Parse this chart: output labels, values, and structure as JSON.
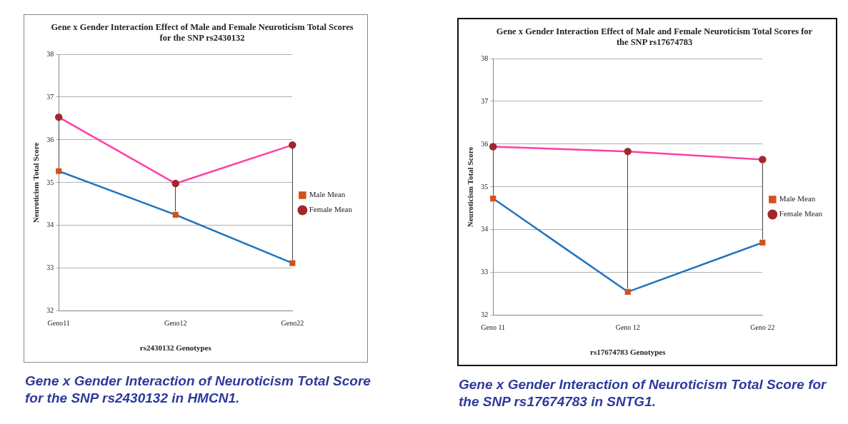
{
  "chart_data": [
    {
      "type": "line",
      "title": "Gene x Gender Interaction Effect of Male and Female Neuroticism Total Scores for the SNP rs2430132",
      "xlabel": "rs2430132 Genotypes",
      "ylabel": "Neuroticism Total Score",
      "categories": [
        "Geno11",
        "Geno12",
        "Geno22"
      ],
      "series": [
        {
          "name": "Male Mean",
          "color": "#1f74bf",
          "marker": "square",
          "values": [
            35.27,
            34.25,
            33.12
          ]
        },
        {
          "name": "Female Mean",
          "color": "#ff3fa4",
          "marker": "circle",
          "values": [
            36.53,
            34.98,
            35.88
          ]
        }
      ],
      "ylim": [
        32,
        38
      ],
      "yticks": [
        32,
        33,
        34,
        35,
        36,
        37,
        38
      ],
      "grid": "y",
      "legend": "right",
      "line_style": "solid",
      "annotations": [
        "Gene x Gender Interaction of Neuroticism Total Score for the SNP rs2430132 in HMCN1."
      ]
    },
    {
      "type": "line",
      "title": "Gene x Gender Interaction  Effect of Male and Female Neuroticism Total Scores for the SNP rs17674783",
      "xlabel": "rs17674783 Genotypes",
      "ylabel": "Neuroticism Total Score",
      "categories": [
        "Geno 11",
        "Geno 12",
        "Geno 22"
      ],
      "series": [
        {
          "name": "Male Mean",
          "color": "#1f74bf",
          "marker": "square",
          "values": [
            34.73,
            32.55,
            33.7
          ]
        },
        {
          "name": "Female Mean",
          "color": "#ff3fa4",
          "marker": "circle",
          "values": [
            35.94,
            35.83,
            35.64
          ]
        }
      ],
      "ylim": [
        32,
        38
      ],
      "yticks": [
        32,
        33,
        34,
        35,
        36,
        37,
        38
      ],
      "grid": "y",
      "legend": "right",
      "line_style": "solid",
      "annotations": [
        "Gene x Gender Interaction of Neuroticism Total Score for the SNP rs17674783 in SNTG1."
      ]
    }
  ]
}
